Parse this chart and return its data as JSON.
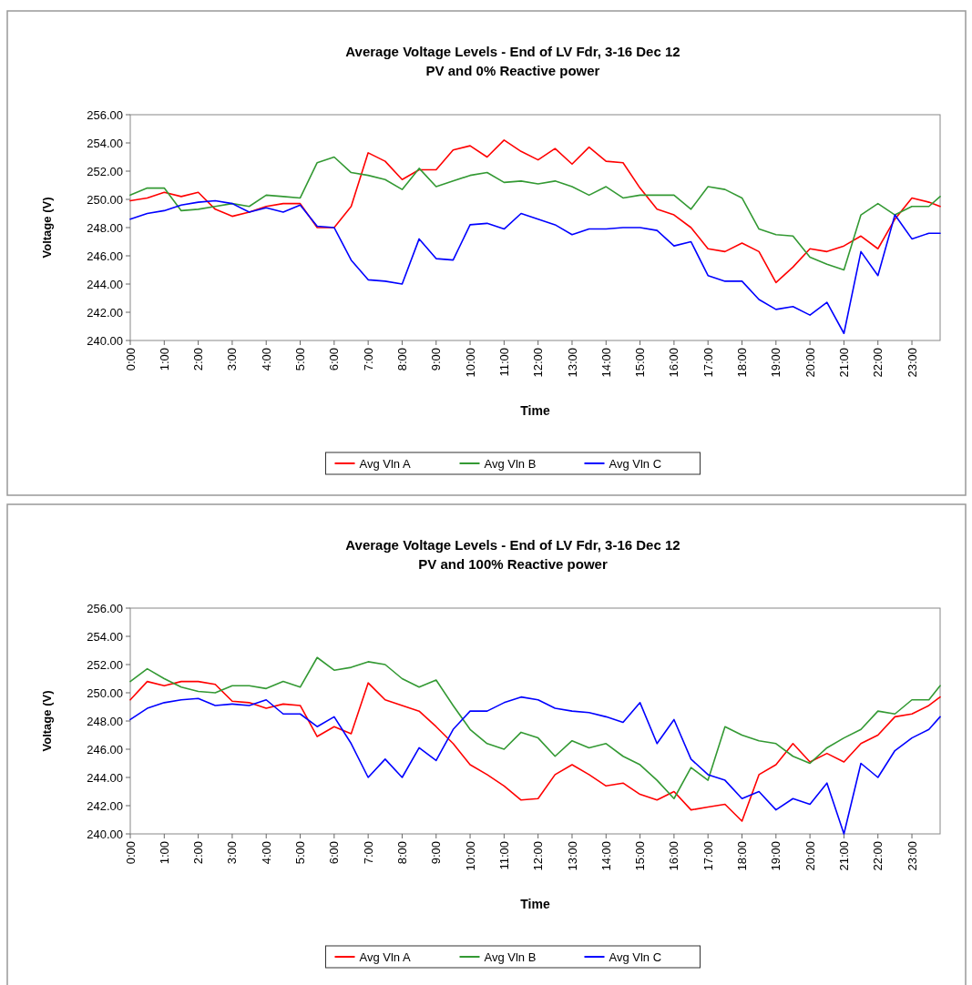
{
  "chart_data": [
    {
      "type": "line",
      "title": "Average Voltage Levels - End of LV Fdr, 3-16 Dec 12",
      "subtitle": "PV and 0%  Reactive power",
      "xlabel": "Time",
      "ylabel": "Voltage (V)",
      "x": [
        0,
        0.5,
        1,
        1.5,
        2,
        2.5,
        3,
        3.5,
        4,
        4.5,
        5,
        5.5,
        6,
        6.5,
        7,
        7.5,
        8,
        8.5,
        9,
        9.5,
        10,
        10.5,
        11,
        11.5,
        12,
        12.5,
        13,
        13.5,
        14,
        14.5,
        15,
        15.5,
        16,
        16.5,
        17,
        17.5,
        18,
        18.5,
        19,
        19.5,
        20,
        20.5,
        21,
        21.5,
        22,
        22.5,
        23,
        23.5,
        23.83
      ],
      "xlim": [
        0,
        23.83
      ],
      "xticks": [
        {
          "value": 0,
          "label": "0:00"
        },
        {
          "value": 1,
          "label": "1:00"
        },
        {
          "value": 2,
          "label": "2:00"
        },
        {
          "value": 3,
          "label": "3:00"
        },
        {
          "value": 4,
          "label": "4:00"
        },
        {
          "value": 5,
          "label": "5:00"
        },
        {
          "value": 6,
          "label": "6:00"
        },
        {
          "value": 7,
          "label": "7:00"
        },
        {
          "value": 8,
          "label": "8:00"
        },
        {
          "value": 9,
          "label": "9:00"
        },
        {
          "value": 10,
          "label": "10:00"
        },
        {
          "value": 11,
          "label": "11:00"
        },
        {
          "value": 12,
          "label": "12:00"
        },
        {
          "value": 13,
          "label": "13:00"
        },
        {
          "value": 14,
          "label": "14:00"
        },
        {
          "value": 15,
          "label": "15:00"
        },
        {
          "value": 16,
          "label": "16:00"
        },
        {
          "value": 17,
          "label": "17:00"
        },
        {
          "value": 18,
          "label": "18:00"
        },
        {
          "value": 19,
          "label": "19:00"
        },
        {
          "value": 20,
          "label": "20:00"
        },
        {
          "value": 21,
          "label": "21:00"
        },
        {
          "value": 22,
          "label": "22:00"
        },
        {
          "value": 23,
          "label": "23:00"
        }
      ],
      "ylim": [
        240,
        256
      ],
      "yticks": [
        {
          "value": 240,
          "label": "240.00"
        },
        {
          "value": 242,
          "label": "242.00"
        },
        {
          "value": 244,
          "label": "244.00"
        },
        {
          "value": 246,
          "label": "246.00"
        },
        {
          "value": 248,
          "label": "248.00"
        },
        {
          "value": 250,
          "label": "250.00"
        },
        {
          "value": 252,
          "label": "252.00"
        },
        {
          "value": 254,
          "label": "254.00"
        },
        {
          "value": 256,
          "label": "256.00"
        }
      ],
      "legend": "bottom",
      "series": [
        {
          "name": "Avg Vln A",
          "color": "#ff0000",
          "values": [
            249.9,
            250.1,
            250.5,
            250.2,
            250.5,
            249.3,
            248.8,
            249.1,
            249.5,
            249.7,
            249.7,
            248.0,
            248.0,
            249.5,
            253.3,
            252.7,
            251.4,
            252.1,
            252.1,
            253.5,
            253.8,
            253.0,
            254.2,
            253.4,
            252.8,
            253.6,
            252.5,
            253.7,
            252.7,
            252.6,
            250.8,
            249.3,
            248.9,
            248.0,
            246.5,
            246.3,
            246.9,
            246.3,
            244.1,
            245.2,
            246.5,
            246.3,
            246.7,
            247.4,
            246.5,
            248.6,
            250.1,
            249.8,
            249.5
          ]
        },
        {
          "name": "Avg Vln B",
          "color": "#339933",
          "values": [
            250.3,
            250.8,
            250.8,
            249.2,
            249.3,
            249.5,
            249.7,
            249.5,
            250.3,
            250.2,
            250.1,
            252.6,
            253.0,
            251.9,
            251.7,
            251.4,
            250.7,
            252.2,
            250.9,
            251.3,
            251.7,
            251.9,
            251.2,
            251.3,
            251.1,
            251.3,
            250.9,
            250.3,
            250.9,
            250.1,
            250.3,
            250.3,
            250.3,
            249.3,
            250.9,
            250.7,
            250.1,
            247.9,
            247.5,
            247.4,
            245.9,
            245.4,
            245.0,
            248.9,
            249.7,
            248.9,
            249.5,
            249.5,
            250.2
          ]
        },
        {
          "name": "Avg Vln C",
          "color": "#0000ff",
          "values": [
            248.6,
            249.0,
            249.2,
            249.6,
            249.8,
            249.9,
            249.7,
            249.1,
            249.4,
            249.1,
            249.6,
            248.1,
            248.0,
            245.7,
            244.3,
            244.2,
            244.0,
            247.2,
            245.8,
            245.7,
            248.2,
            248.3,
            247.9,
            249.0,
            248.6,
            248.2,
            247.5,
            247.9,
            247.9,
            248.0,
            248.0,
            247.8,
            246.7,
            247.0,
            244.6,
            244.2,
            244.2,
            242.9,
            242.2,
            242.4,
            241.8,
            242.7,
            240.5,
            246.3,
            244.6,
            248.9,
            247.2,
            247.6,
            247.6
          ]
        }
      ]
    },
    {
      "type": "line",
      "title": "Average Voltage Levels - End of LV Fdr, 3-16 Dec 12",
      "subtitle": "PV and 100%  Reactive power",
      "xlabel": "Time",
      "ylabel": "Voltage (V)",
      "x": [
        0,
        0.5,
        1,
        1.5,
        2,
        2.5,
        3,
        3.5,
        4,
        4.5,
        5,
        5.5,
        6,
        6.5,
        7,
        7.5,
        8,
        8.5,
        9,
        9.5,
        10,
        10.5,
        11,
        11.5,
        12,
        12.5,
        13,
        13.5,
        14,
        14.5,
        15,
        15.5,
        16,
        16.5,
        17,
        17.5,
        18,
        18.5,
        19,
        19.5,
        20,
        20.5,
        21,
        21.5,
        22,
        22.5,
        23,
        23.5,
        23.83
      ],
      "xlim": [
        0,
        23.83
      ],
      "xticks": [
        {
          "value": 0,
          "label": "0:00"
        },
        {
          "value": 1,
          "label": "1:00"
        },
        {
          "value": 2,
          "label": "2:00"
        },
        {
          "value": 3,
          "label": "3:00"
        },
        {
          "value": 4,
          "label": "4:00"
        },
        {
          "value": 5,
          "label": "5:00"
        },
        {
          "value": 6,
          "label": "6:00"
        },
        {
          "value": 7,
          "label": "7:00"
        },
        {
          "value": 8,
          "label": "8:00"
        },
        {
          "value": 9,
          "label": "9:00"
        },
        {
          "value": 10,
          "label": "10:00"
        },
        {
          "value": 11,
          "label": "11:00"
        },
        {
          "value": 12,
          "label": "12:00"
        },
        {
          "value": 13,
          "label": "13:00"
        },
        {
          "value": 14,
          "label": "14:00"
        },
        {
          "value": 15,
          "label": "15:00"
        },
        {
          "value": 16,
          "label": "16:00"
        },
        {
          "value": 17,
          "label": "17:00"
        },
        {
          "value": 18,
          "label": "18:00"
        },
        {
          "value": 19,
          "label": "19:00"
        },
        {
          "value": 20,
          "label": "20:00"
        },
        {
          "value": 21,
          "label": "21:00"
        },
        {
          "value": 22,
          "label": "22:00"
        },
        {
          "value": 23,
          "label": "23:00"
        }
      ],
      "ylim": [
        240,
        256
      ],
      "yticks": [
        {
          "value": 240,
          "label": "240.00"
        },
        {
          "value": 242,
          "label": "242.00"
        },
        {
          "value": 244,
          "label": "244.00"
        },
        {
          "value": 246,
          "label": "246.00"
        },
        {
          "value": 248,
          "label": "248.00"
        },
        {
          "value": 250,
          "label": "250.00"
        },
        {
          "value": 252,
          "label": "252.00"
        },
        {
          "value": 254,
          "label": "254.00"
        },
        {
          "value": 256,
          "label": "256.00"
        }
      ],
      "legend": "bottom",
      "series": [
        {
          "name": "Avg Vln A",
          "color": "#ff0000",
          "values": [
            249.5,
            250.8,
            250.5,
            250.8,
            250.8,
            250.6,
            249.4,
            249.3,
            248.9,
            249.2,
            249.1,
            246.9,
            247.6,
            247.1,
            250.7,
            249.5,
            249.1,
            248.7,
            247.6,
            246.4,
            244.9,
            244.2,
            243.4,
            242.4,
            242.5,
            244.2,
            244.9,
            244.2,
            243.4,
            243.6,
            242.8,
            242.4,
            243.0,
            241.7,
            241.9,
            242.1,
            240.9,
            244.2,
            244.9,
            246.4,
            245.1,
            245.7,
            245.1,
            246.4,
            247.0,
            248.3,
            248.5,
            249.1,
            249.7
          ]
        },
        {
          "name": "Avg Vln B",
          "color": "#339933",
          "values": [
            250.8,
            251.7,
            251.0,
            250.4,
            250.1,
            250.0,
            250.5,
            250.5,
            250.3,
            250.8,
            250.4,
            252.5,
            251.6,
            251.8,
            252.2,
            252.0,
            251.0,
            250.4,
            250.9,
            249.1,
            247.4,
            246.4,
            246.0,
            247.2,
            246.8,
            245.5,
            246.6,
            246.1,
            246.4,
            245.5,
            244.9,
            243.8,
            242.5,
            244.7,
            243.8,
            247.6,
            247.0,
            246.6,
            246.4,
            245.5,
            245.0,
            246.1,
            246.8,
            247.4,
            248.7,
            248.5,
            249.5,
            249.5,
            250.5
          ]
        },
        {
          "name": "Avg Vln C",
          "color": "#0000ff",
          "values": [
            248.1,
            248.9,
            249.3,
            249.5,
            249.6,
            249.1,
            249.2,
            249.1,
            249.5,
            248.5,
            248.5,
            247.6,
            248.3,
            246.4,
            244.0,
            245.3,
            244.0,
            246.1,
            245.2,
            247.4,
            248.7,
            248.7,
            249.3,
            249.7,
            249.5,
            248.9,
            248.7,
            248.6,
            248.3,
            247.9,
            249.3,
            246.4,
            248.1,
            245.3,
            244.2,
            243.8,
            242.5,
            243.0,
            241.7,
            242.5,
            242.1,
            243.6,
            240.0,
            245.0,
            244.0,
            245.9,
            246.8,
            247.4,
            248.3
          ]
        }
      ]
    }
  ]
}
